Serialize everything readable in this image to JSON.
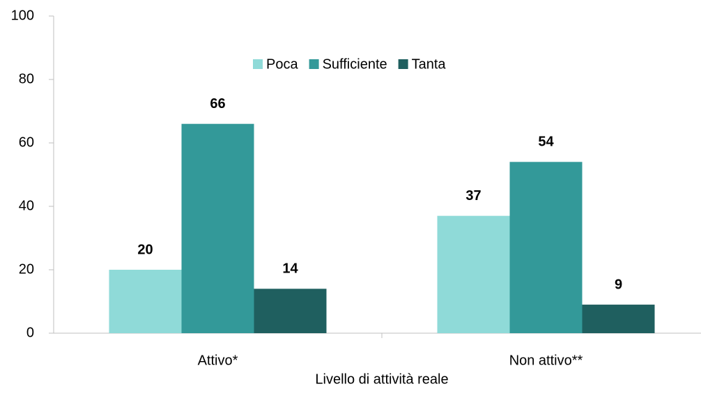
{
  "chart_data": {
    "type": "bar",
    "x_label": "Livello di attività reale",
    "categories": [
      "Attivo*",
      "Non attivo**"
    ],
    "series": [
      {
        "name": "Poca",
        "color": "#8fdad8",
        "values": [
          20,
          37
        ]
      },
      {
        "name": "Sufficiente",
        "color": "#339999",
        "values": [
          66,
          54
        ]
      },
      {
        "name": "Tanta",
        "color": "#1f5f5f",
        "values": [
          14,
          9
        ]
      }
    ],
    "ylim": [
      0,
      100
    ],
    "yticks": [
      0,
      20,
      40,
      60,
      80,
      100
    ],
    "legend": "top"
  }
}
